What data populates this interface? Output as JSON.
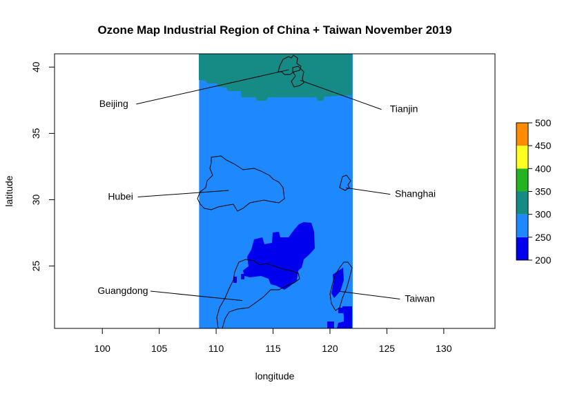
{
  "title": "Ozone Map Industrial Region of China + Taiwan November 2019",
  "xlabel": "longitude",
  "ylabel": "latitude",
  "colors": {
    "c200": "#0000ee",
    "c250": "#1e88ff",
    "c300": "#168a84",
    "c350": "#22b422",
    "c400": "#ffff22",
    "c450": "#ff8c00",
    "c500": "#ff4500",
    "outline": "#000000"
  },
  "chart_data": {
    "type": "heatmap",
    "xlim": [
      95.8,
      134.5
    ],
    "ylim": [
      20.3,
      41.0
    ],
    "xticks": [
      "100",
      "105",
      "110",
      "115",
      "120",
      "125",
      "130"
    ],
    "yticks": [
      "25",
      "30",
      "35",
      "40"
    ],
    "legend": {
      "placement": "right",
      "breaks": [
        "200",
        "250",
        "300",
        "350",
        "400",
        "450",
        "500"
      ]
    },
    "data_extent": {
      "lon": [
        108.5,
        122.0
      ],
      "lat": [
        20.3,
        41.0
      ]
    },
    "places": [
      {
        "name": "Beijing",
        "label_lon": 101.0,
        "label_lat": 37.0,
        "point_lon": 116.4,
        "point_lat": 39.8
      },
      {
        "name": "Tianjin",
        "label_lon": 126.5,
        "label_lat": 36.6,
        "point_lon": 117.4,
        "point_lat": 39.0
      },
      {
        "name": "Hubei",
        "label_lon": 101.6,
        "label_lat": 30.0,
        "point_lon": 111.1,
        "point_lat": 30.7
      },
      {
        "name": "Shanghai",
        "label_lon": 127.5,
        "label_lat": 30.2,
        "point_lon": 121.4,
        "point_lat": 30.9
      },
      {
        "name": "Guangdong",
        "label_lon": 101.8,
        "label_lat": 22.9,
        "point_lon": 112.3,
        "point_lat": 22.4
      },
      {
        "name": "Taiwan",
        "label_lon": 127.9,
        "label_lat": 22.3,
        "point_lon": 120.8,
        "point_lat": 23.1
      }
    ],
    "ozone_zones": [
      {
        "level": "250-300",
        "lon": [
          108.5,
          122.0
        ],
        "lat": [
          20.3,
          41.0
        ]
      },
      {
        "level": "300-350",
        "lon": [
          108.5,
          122.0
        ],
        "lat": [
          37.8,
          41.0
        ]
      }
    ]
  }
}
